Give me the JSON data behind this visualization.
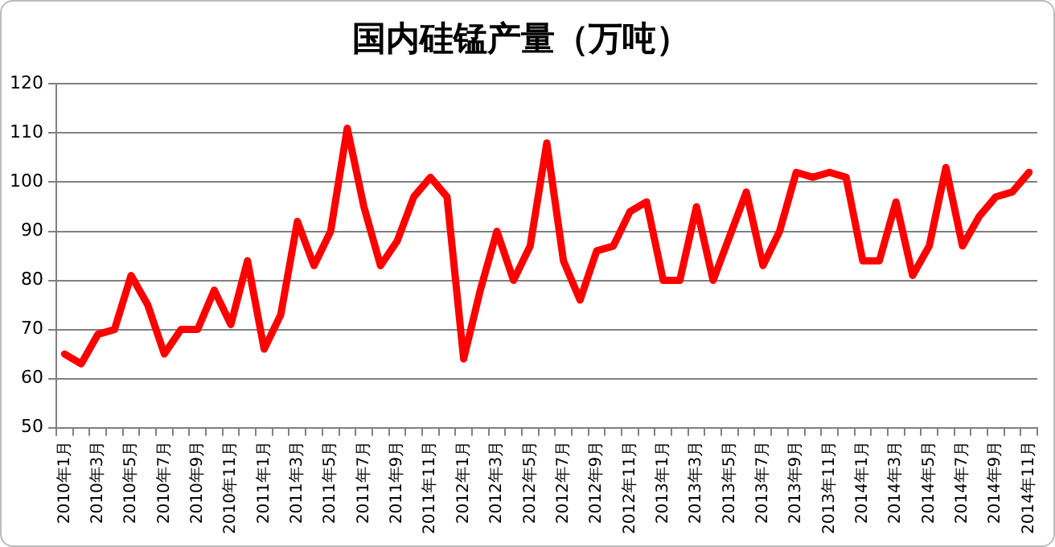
{
  "chart_data": {
    "type": "line",
    "title": "国内硅锰产量（万吨）",
    "categories": [
      "2010年1月",
      null,
      "2010年3月",
      null,
      "2010年5月",
      null,
      "2010年7月",
      null,
      "2010年9月",
      null,
      "2010年11月",
      null,
      "2011年1月",
      null,
      "2011年3月",
      null,
      "2011年5月",
      null,
      "2011年7月",
      null,
      "2011年9月",
      null,
      "2011年11月",
      null,
      "2012年1月",
      null,
      "2012年3月",
      null,
      "2012年5月",
      null,
      "2012年7月",
      null,
      "2012年9月",
      null,
      "2012年11月",
      null,
      "2013年1月",
      null,
      "2013年3月",
      null,
      "2013年5月",
      null,
      "2013年7月",
      null,
      "2013年9月",
      null,
      "2013年11月",
      null,
      "2014年1月",
      null,
      "2014年3月",
      null,
      "2014年5月",
      null,
      "2014年7月",
      null,
      "2014年9月",
      null,
      "2014年11月"
    ],
    "series": [
      {
        "color": "#ff0000",
        "values": [
          65,
          63,
          69,
          70,
          81,
          75,
          65,
          70,
          70,
          78,
          71,
          84,
          66,
          73,
          92,
          83,
          90,
          111,
          95,
          83,
          88,
          97,
          101,
          97,
          64,
          78,
          90,
          80,
          87,
          108,
          84,
          76,
          86,
          87,
          94,
          96,
          80,
          80,
          95,
          80,
          89,
          98,
          83,
          90,
          102,
          101,
          102,
          101,
          84,
          84,
          96,
          81,
          87,
          103,
          87,
          93,
          97,
          98,
          102
        ]
      }
    ],
    "ylim": [
      50,
      120
    ],
    "yticks": [
      50,
      60,
      70,
      80,
      90,
      100,
      110,
      120
    ],
    "grid": "y",
    "legend": false,
    "marker": "none",
    "line_style": "solid"
  }
}
